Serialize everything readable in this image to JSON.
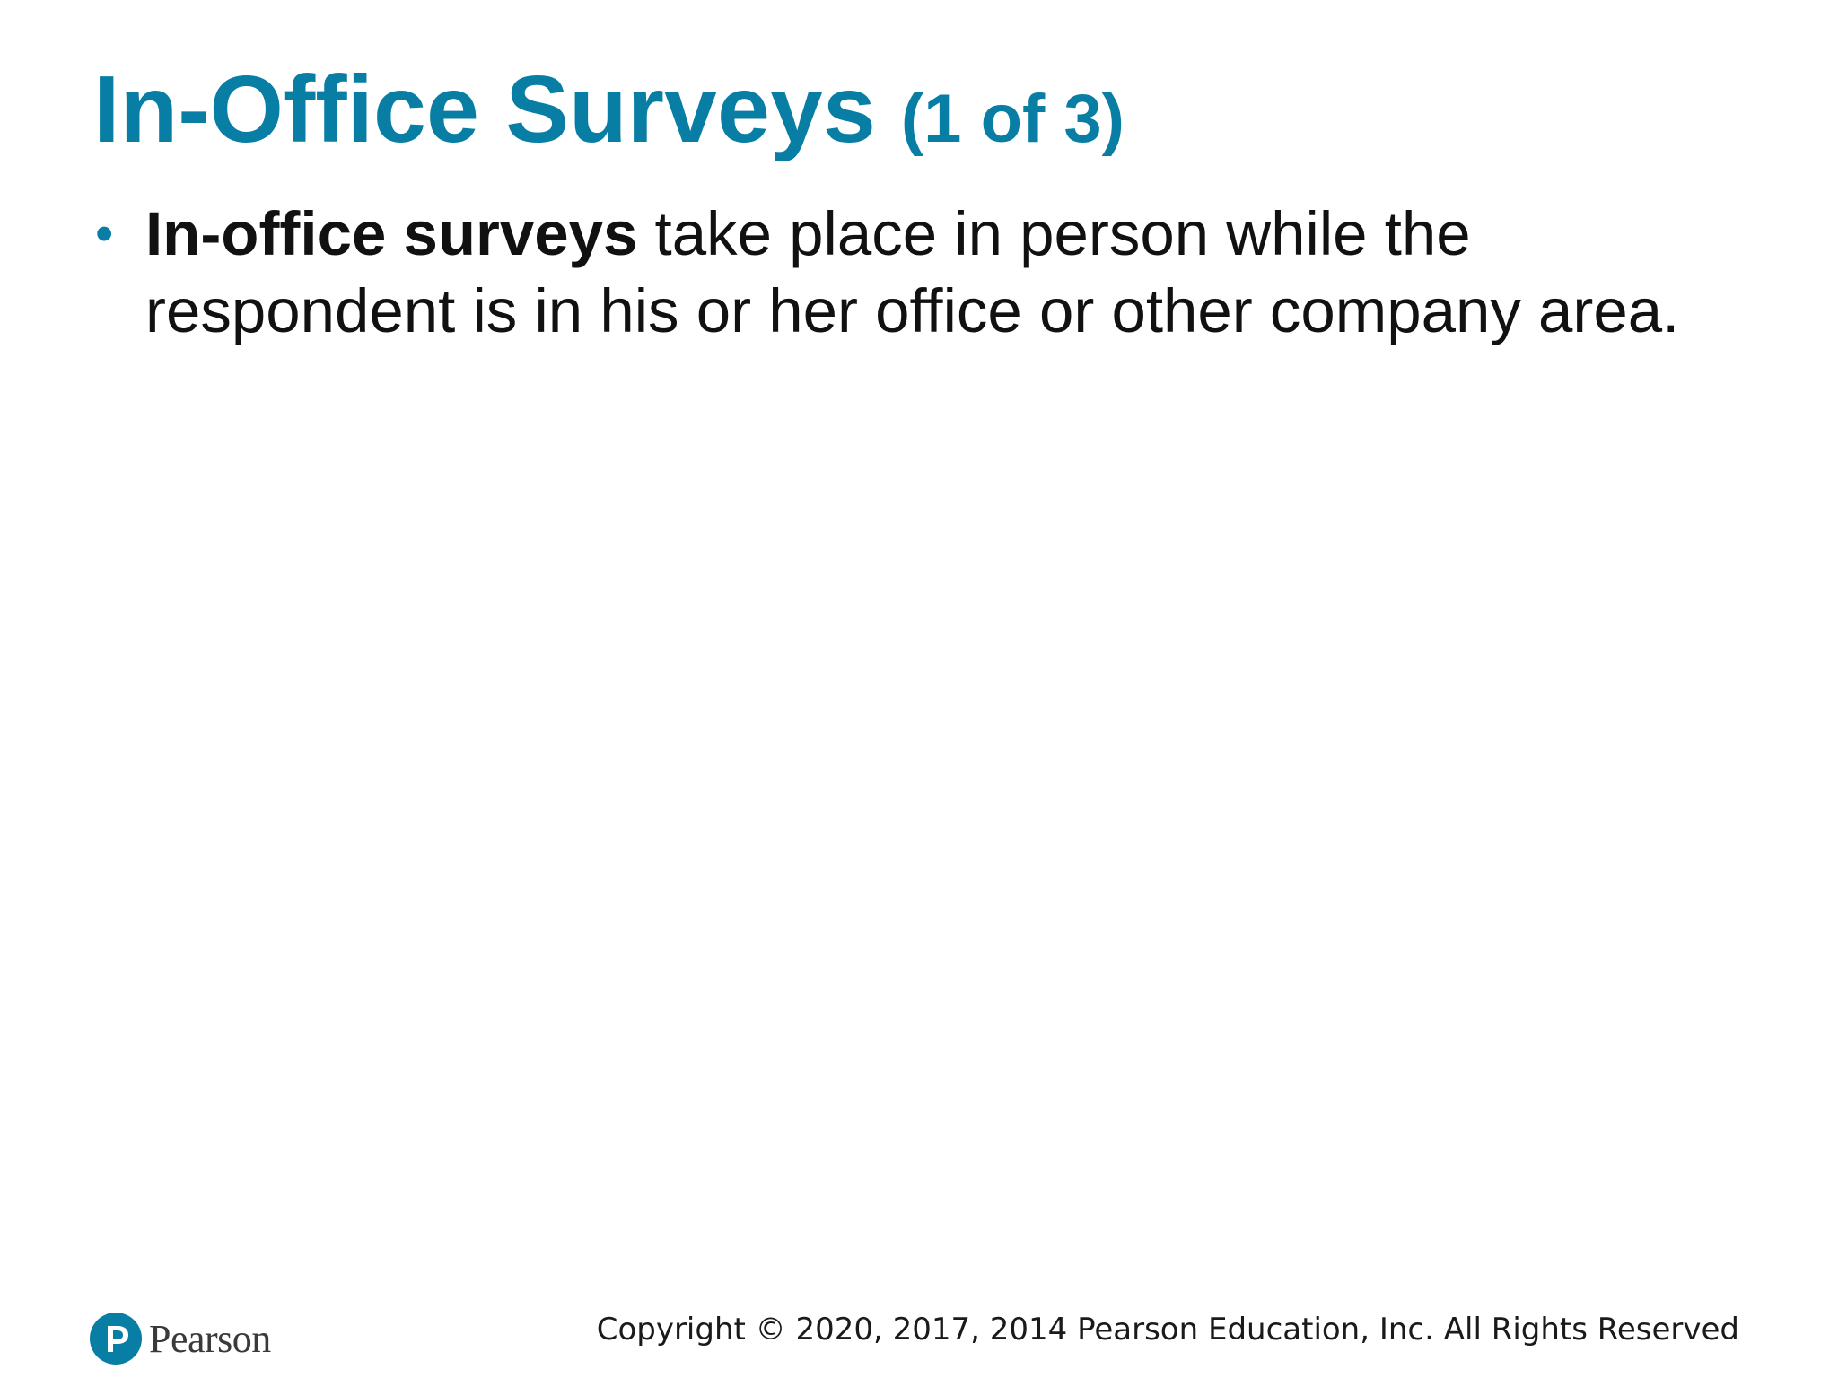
{
  "slide": {
    "title": "In-Office Surveys",
    "title_suffix": "(1 of 3)",
    "bullets": [
      {
        "term": "In-office surveys",
        "text": " take place in person while the respondent is in his or her office or other company area."
      }
    ]
  },
  "footer": {
    "logo_text": "Pearson",
    "copyright": "Copyright © 2020, 2017, 2014 Pearson Education, Inc. All Rights Reserved"
  },
  "colors": {
    "accent": "#087ea4",
    "body_text": "#111111"
  },
  "icons": {
    "logo": "pearson-logo-icon"
  }
}
